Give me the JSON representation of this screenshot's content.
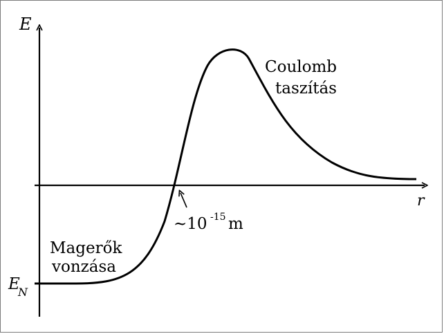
{
  "axes": {
    "y_label": "E",
    "x_label": "r",
    "level_label_main": "E",
    "level_label_sub": "N"
  },
  "annotations": {
    "repulsion_line1": "Coulomb",
    "repulsion_line2": "taszítás",
    "attraction_line1": "Magerők",
    "attraction_line2": "vonzása",
    "distance_prefix": "~10",
    "distance_exponent": "-15",
    "distance_unit": "m"
  }
}
